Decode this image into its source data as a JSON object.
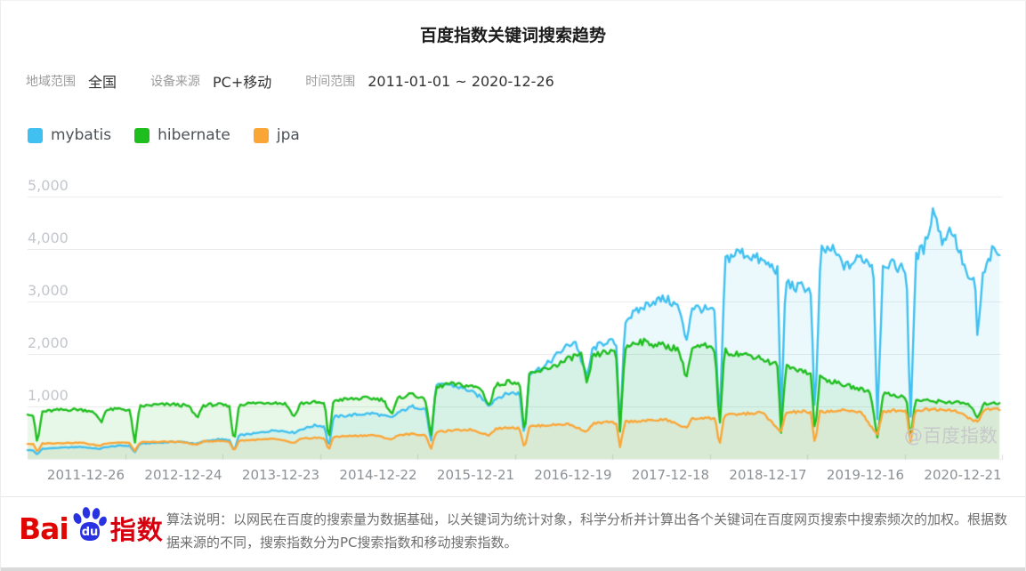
{
  "header": {
    "title": "百度指数关键词搜索趋势"
  },
  "filters": {
    "region_label": "地域范围",
    "region_value": "全国",
    "device_label": "设备来源",
    "device_value": "PC+移动",
    "time_label": "时间范围",
    "time_value": "2011-01-01 ~ 2020-12-26"
  },
  "watermark": "@百度指数",
  "footer": {
    "brand_bai": "Bai",
    "brand_du": "du",
    "brand_suffix": "指数",
    "description": "算法说明：以网民在百度的搜索量为数据基础，以关键词为统计对象，科学分析并计算出各个关键词在百度网页搜索中搜索频次的加权。根据数据来源的不同，搜索指数分为PC搜索指数和移动搜索指数。"
  },
  "colors": {
    "mybatis": "#3fc0f0",
    "hibernate": "#1ebe1e",
    "jpa": "#faa637",
    "grid": "#ececec",
    "tick": "#dcdcdc"
  },
  "chart_data": {
    "type": "area",
    "title": "百度指数关键词搜索趋势",
    "xlabel": "",
    "ylabel": "",
    "legend_position": "top-left",
    "grid": true,
    "x_axis": {
      "start": 2011.0,
      "end": 2021.0,
      "tick_labels": [
        "2011-12-26",
        "2012-12-24",
        "2013-12-23",
        "2014-12-22",
        "2015-12-21",
        "2016-12-19",
        "2017-12-18",
        "2018-12-17",
        "2019-12-16",
        "2020-12-21"
      ]
    },
    "y_axis": {
      "min": 0,
      "max": 5000,
      "tick_values": [
        1000,
        2000,
        3000,
        4000,
        5000
      ],
      "tick_labels": [
        "1,000",
        "2,000",
        "3,000",
        "4,000",
        "5,000"
      ]
    },
    "series": [
      {
        "name": "mybatis",
        "color": "#3fc0f0",
        "points": [
          [
            2011.0,
            170
          ],
          [
            2011.06,
            160
          ],
          [
            2011.1,
            80
          ],
          [
            2011.15,
            195
          ],
          [
            2011.35,
            215
          ],
          [
            2011.55,
            230
          ],
          [
            2011.74,
            190
          ],
          [
            2011.8,
            225
          ],
          [
            2011.95,
            255
          ],
          [
            2012.05,
            250
          ],
          [
            2012.1,
            120
          ],
          [
            2012.15,
            290
          ],
          [
            2012.35,
            310
          ],
          [
            2012.55,
            330
          ],
          [
            2012.74,
            290
          ],
          [
            2012.8,
            330
          ],
          [
            2012.95,
            375
          ],
          [
            2013.07,
            360
          ],
          [
            2013.12,
            150
          ],
          [
            2013.17,
            450
          ],
          [
            2013.35,
            490
          ],
          [
            2013.55,
            550
          ],
          [
            2013.74,
            500
          ],
          [
            2013.8,
            560
          ],
          [
            2013.95,
            640
          ],
          [
            2014.05,
            620
          ],
          [
            2014.09,
            200
          ],
          [
            2014.14,
            800
          ],
          [
            2014.35,
            840
          ],
          [
            2014.55,
            870
          ],
          [
            2014.74,
            780
          ],
          [
            2014.8,
            880
          ],
          [
            2014.95,
            1000
          ],
          [
            2015.09,
            950
          ],
          [
            2015.14,
            300
          ],
          [
            2015.19,
            1380
          ],
          [
            2015.3,
            1430
          ],
          [
            2015.5,
            1330
          ],
          [
            2015.65,
            1180
          ],
          [
            2015.74,
            1020
          ],
          [
            2015.8,
            1150
          ],
          [
            2015.95,
            1260
          ],
          [
            2016.05,
            1250
          ],
          [
            2016.1,
            400
          ],
          [
            2016.15,
            1650
          ],
          [
            2016.3,
            1750
          ],
          [
            2016.5,
            2100
          ],
          [
            2016.62,
            2250
          ],
          [
            2016.74,
            1550
          ],
          [
            2016.8,
            2100
          ],
          [
            2016.95,
            2250
          ],
          [
            2017.04,
            2200
          ],
          [
            2017.08,
            550
          ],
          [
            2017.13,
            2650
          ],
          [
            2017.25,
            2800
          ],
          [
            2017.4,
            3000
          ],
          [
            2017.55,
            3050
          ],
          [
            2017.68,
            2900
          ],
          [
            2017.76,
            2250
          ],
          [
            2017.82,
            2900
          ],
          [
            2017.95,
            2850
          ],
          [
            2018.05,
            2800
          ],
          [
            2018.1,
            650
          ],
          [
            2018.16,
            3800
          ],
          [
            2018.3,
            3950
          ],
          [
            2018.45,
            3850
          ],
          [
            2018.6,
            3700
          ],
          [
            2018.7,
            3600
          ],
          [
            2018.73,
            650
          ],
          [
            2018.78,
            3400
          ],
          [
            2018.88,
            3250
          ],
          [
            2018.95,
            3300
          ],
          [
            2019.04,
            3200
          ],
          [
            2019.08,
            700
          ],
          [
            2019.14,
            3950
          ],
          [
            2019.25,
            4000
          ],
          [
            2019.4,
            3650
          ],
          [
            2019.55,
            3850
          ],
          [
            2019.68,
            3700
          ],
          [
            2019.72,
            720
          ],
          [
            2019.78,
            3750
          ],
          [
            2019.95,
            3650
          ],
          [
            2020.02,
            3600
          ],
          [
            2020.06,
            650
          ],
          [
            2020.12,
            3900
          ],
          [
            2020.2,
            4000
          ],
          [
            2020.3,
            4800
          ],
          [
            2020.38,
            4150
          ],
          [
            2020.48,
            4400
          ],
          [
            2020.58,
            3850
          ],
          [
            2020.68,
            3300
          ],
          [
            2020.72,
            3500
          ],
          [
            2020.75,
            2260
          ],
          [
            2020.8,
            3450
          ],
          [
            2020.9,
            3950
          ],
          [
            2020.99,
            3900
          ]
        ]
      },
      {
        "name": "hibernate",
        "color": "#1ebe1e",
        "points": [
          [
            2011.0,
            870
          ],
          [
            2011.06,
            820
          ],
          [
            2011.1,
            280
          ],
          [
            2011.15,
            900
          ],
          [
            2011.3,
            930
          ],
          [
            2011.5,
            945
          ],
          [
            2011.65,
            920
          ],
          [
            2011.73,
            780
          ],
          [
            2011.76,
            700
          ],
          [
            2011.8,
            930
          ],
          [
            2011.95,
            955
          ],
          [
            2012.05,
            930
          ],
          [
            2012.1,
            290
          ],
          [
            2012.15,
            1000
          ],
          [
            2012.3,
            1030
          ],
          [
            2012.5,
            1040
          ],
          [
            2012.65,
            1010
          ],
          [
            2012.74,
            780
          ],
          [
            2012.8,
            1020
          ],
          [
            2012.95,
            1040
          ],
          [
            2013.07,
            1000
          ],
          [
            2013.12,
            300
          ],
          [
            2013.17,
            1040
          ],
          [
            2013.3,
            1060
          ],
          [
            2013.5,
            1080
          ],
          [
            2013.65,
            1050
          ],
          [
            2013.74,
            800
          ],
          [
            2013.8,
            1060
          ],
          [
            2013.95,
            1080
          ],
          [
            2014.05,
            1050
          ],
          [
            2014.09,
            350
          ],
          [
            2014.14,
            1120
          ],
          [
            2014.3,
            1140
          ],
          [
            2014.5,
            1160
          ],
          [
            2014.65,
            1130
          ],
          [
            2014.74,
            850
          ],
          [
            2014.8,
            1150
          ],
          [
            2014.95,
            1250
          ],
          [
            2015.09,
            1100
          ],
          [
            2015.14,
            400
          ],
          [
            2015.19,
            1350
          ],
          [
            2015.3,
            1430
          ],
          [
            2015.5,
            1400
          ],
          [
            2015.65,
            1350
          ],
          [
            2015.74,
            1000
          ],
          [
            2015.8,
            1400
          ],
          [
            2015.95,
            1480
          ],
          [
            2016.05,
            1450
          ],
          [
            2016.1,
            450
          ],
          [
            2016.15,
            1600
          ],
          [
            2016.3,
            1700
          ],
          [
            2016.5,
            1850
          ],
          [
            2016.6,
            1950
          ],
          [
            2016.68,
            2000
          ],
          [
            2016.74,
            1400
          ],
          [
            2016.8,
            1950
          ],
          [
            2016.95,
            2050
          ],
          [
            2017.04,
            2000
          ],
          [
            2017.08,
            520
          ],
          [
            2017.13,
            2100
          ],
          [
            2017.25,
            2250
          ],
          [
            2017.4,
            2200
          ],
          [
            2017.55,
            2150
          ],
          [
            2017.68,
            2100
          ],
          [
            2017.76,
            1550
          ],
          [
            2017.82,
            2100
          ],
          [
            2017.95,
            2150
          ],
          [
            2018.06,
            2050
          ],
          [
            2018.1,
            520
          ],
          [
            2018.15,
            2050
          ],
          [
            2018.3,
            2000
          ],
          [
            2018.5,
            1950
          ],
          [
            2018.6,
            1850
          ],
          [
            2018.7,
            1800
          ],
          [
            2018.73,
            420
          ],
          [
            2018.78,
            1750
          ],
          [
            2018.95,
            1700
          ],
          [
            2019.04,
            1600
          ],
          [
            2019.08,
            480
          ],
          [
            2019.13,
            1550
          ],
          [
            2019.3,
            1450
          ],
          [
            2019.5,
            1350
          ],
          [
            2019.65,
            1280
          ],
          [
            2019.72,
            400
          ],
          [
            2019.78,
            1250
          ],
          [
            2019.95,
            1200
          ],
          [
            2020.02,
            1150
          ],
          [
            2020.06,
            350
          ],
          [
            2020.11,
            1120
          ],
          [
            2020.3,
            1100
          ],
          [
            2020.5,
            1080
          ],
          [
            2020.65,
            1050
          ],
          [
            2020.75,
            800
          ],
          [
            2020.82,
            1050
          ],
          [
            2020.92,
            1080
          ],
          [
            2020.99,
            1050
          ]
        ]
      },
      {
        "name": "jpa",
        "color": "#faa637",
        "points": [
          [
            2011.0,
            290
          ],
          [
            2011.06,
            280
          ],
          [
            2011.1,
            130
          ],
          [
            2011.15,
            295
          ],
          [
            2011.35,
            305
          ],
          [
            2011.55,
            310
          ],
          [
            2011.74,
            250
          ],
          [
            2011.8,
            300
          ],
          [
            2011.95,
            315
          ],
          [
            2012.05,
            300
          ],
          [
            2012.1,
            140
          ],
          [
            2012.15,
            315
          ],
          [
            2012.35,
            325
          ],
          [
            2012.55,
            330
          ],
          [
            2012.74,
            270
          ],
          [
            2012.8,
            330
          ],
          [
            2012.95,
            345
          ],
          [
            2013.07,
            330
          ],
          [
            2013.12,
            150
          ],
          [
            2013.17,
            350
          ],
          [
            2013.35,
            365
          ],
          [
            2013.55,
            380
          ],
          [
            2013.74,
            300
          ],
          [
            2013.8,
            380
          ],
          [
            2013.95,
            405
          ],
          [
            2014.05,
            390
          ],
          [
            2014.09,
            160
          ],
          [
            2014.14,
            425
          ],
          [
            2014.35,
            440
          ],
          [
            2014.55,
            455
          ],
          [
            2014.74,
            370
          ],
          [
            2014.8,
            455
          ],
          [
            2014.95,
            475
          ],
          [
            2015.09,
            450
          ],
          [
            2015.14,
            180
          ],
          [
            2015.19,
            510
          ],
          [
            2015.35,
            540
          ],
          [
            2015.55,
            560
          ],
          [
            2015.74,
            450
          ],
          [
            2015.8,
            570
          ],
          [
            2015.95,
            605
          ],
          [
            2016.05,
            580
          ],
          [
            2016.1,
            200
          ],
          [
            2016.15,
            620
          ],
          [
            2016.35,
            645
          ],
          [
            2016.55,
            665
          ],
          [
            2016.74,
            520
          ],
          [
            2016.8,
            670
          ],
          [
            2016.95,
            705
          ],
          [
            2017.04,
            680
          ],
          [
            2017.08,
            220
          ],
          [
            2017.13,
            710
          ],
          [
            2017.35,
            730
          ],
          [
            2017.55,
            750
          ],
          [
            2017.76,
            590
          ],
          [
            2017.82,
            760
          ],
          [
            2017.95,
            790
          ],
          [
            2018.06,
            760
          ],
          [
            2018.1,
            240
          ],
          [
            2018.15,
            830
          ],
          [
            2018.35,
            860
          ],
          [
            2018.55,
            880
          ],
          [
            2018.73,
            500
          ],
          [
            2018.78,
            880
          ],
          [
            2018.95,
            905
          ],
          [
            2019.04,
            880
          ],
          [
            2019.08,
            260
          ],
          [
            2019.13,
            900
          ],
          [
            2019.35,
            920
          ],
          [
            2019.55,
            905
          ],
          [
            2019.72,
            450
          ],
          [
            2019.78,
            910
          ],
          [
            2019.95,
            930
          ],
          [
            2020.02,
            910
          ],
          [
            2020.06,
            300
          ],
          [
            2020.11,
            930
          ],
          [
            2020.3,
            950
          ],
          [
            2020.5,
            935
          ],
          [
            2020.75,
            700
          ],
          [
            2020.82,
            940
          ],
          [
            2020.92,
            960
          ],
          [
            2020.99,
            940
          ]
        ]
      }
    ]
  }
}
